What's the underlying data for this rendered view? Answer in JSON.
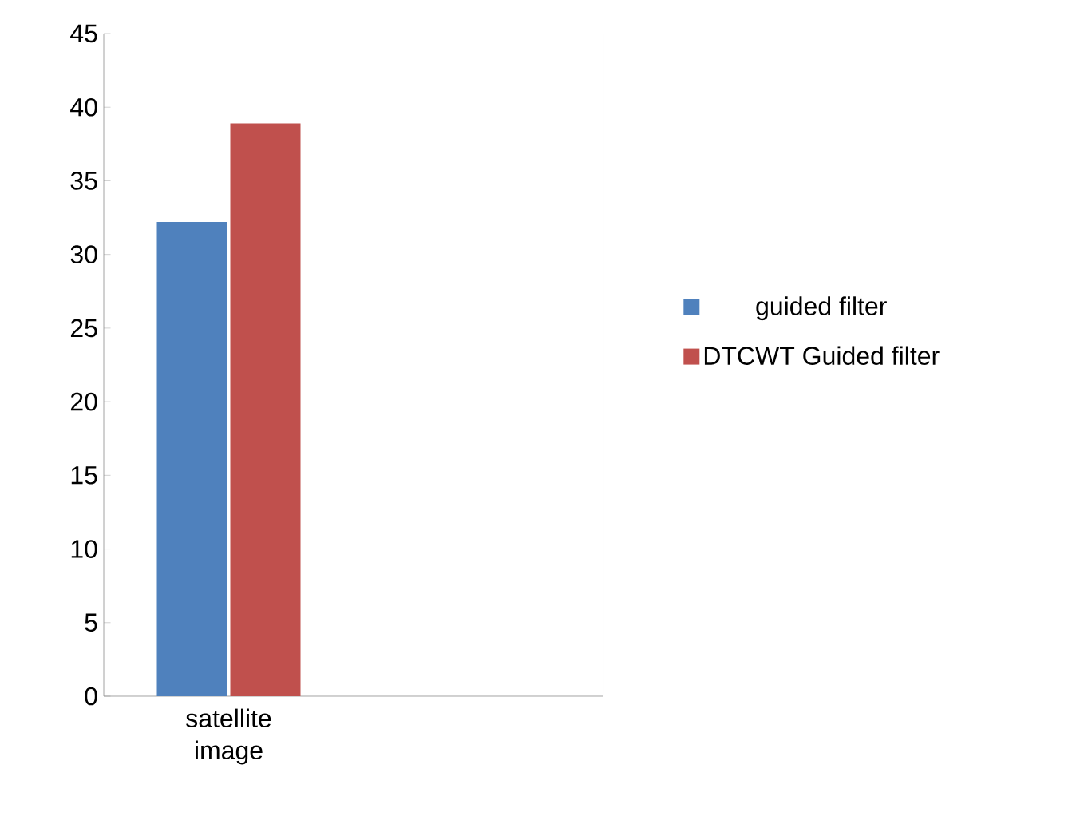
{
  "chart_data": {
    "type": "bar",
    "categories": [
      "satellite image",
      null
    ],
    "series": [
      {
        "name": "guided filter",
        "color": "#4f81bd",
        "values": [
          32.2,
          null
        ]
      },
      {
        "name": "DTCWT Guided filter",
        "color": "#c0504d",
        "values": [
          38.9,
          null
        ]
      }
    ],
    "ylim": [
      0,
      45
    ],
    "yticks": [
      0,
      5,
      10,
      15,
      20,
      25,
      30,
      35,
      40,
      45
    ],
    "grid": false,
    "legend": "right"
  }
}
